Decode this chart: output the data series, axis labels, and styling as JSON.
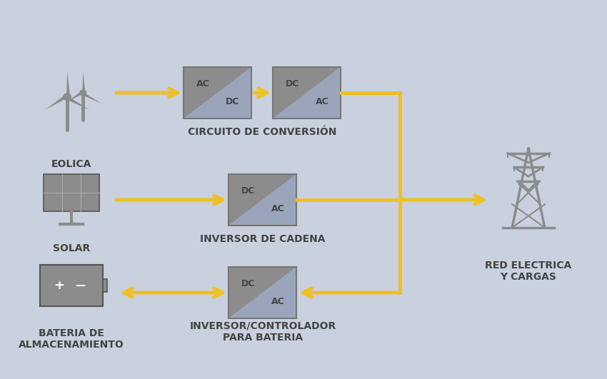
{
  "background_color": "#c9d0de",
  "arrow_color": "#f0c020",
  "icon_color": "#8c8c8c",
  "box_color_dark": "#8c8c8c",
  "box_color_light": "#9aa5bc",
  "box_border_color": "#777777",
  "text_color": "#444444",
  "labels": {
    "eolica": "EOLICA",
    "solar": "SOLAR",
    "bateria": "BATERIA DE\nALMACENAMIENTO",
    "circuito": "CIRCUITO DE CONVERSIÓN",
    "inversor_cadena": "INVERSOR DE CADENA",
    "inversor_bat": "INVERSOR/CONTROLADOR\nPARA BATERIA",
    "red": "RED ELECTRICA\nY CARGAS"
  }
}
